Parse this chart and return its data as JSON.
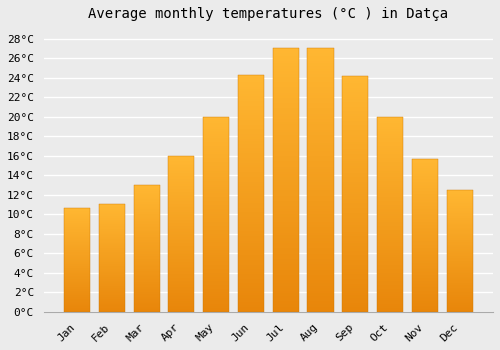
{
  "title": "Average monthly temperatures (°C ) in Datça",
  "months": [
    "Jan",
    "Feb",
    "Mar",
    "Apr",
    "May",
    "Jun",
    "Jul",
    "Aug",
    "Sep",
    "Oct",
    "Nov",
    "Dec"
  ],
  "values": [
    10.7,
    11.1,
    13.0,
    16.0,
    20.0,
    24.3,
    27.1,
    27.1,
    24.2,
    20.0,
    15.7,
    12.5
  ],
  "bar_color_top": "#FFB732",
  "bar_color_bottom": "#E8860A",
  "ylim": [
    0,
    29
  ],
  "yticks": [
    0,
    2,
    4,
    6,
    8,
    10,
    12,
    14,
    16,
    18,
    20,
    22,
    24,
    26,
    28
  ],
  "background_color": "#ebebeb",
  "grid_color": "#ffffff",
  "title_fontsize": 10,
  "tick_fontsize": 8,
  "bar_width": 0.75
}
